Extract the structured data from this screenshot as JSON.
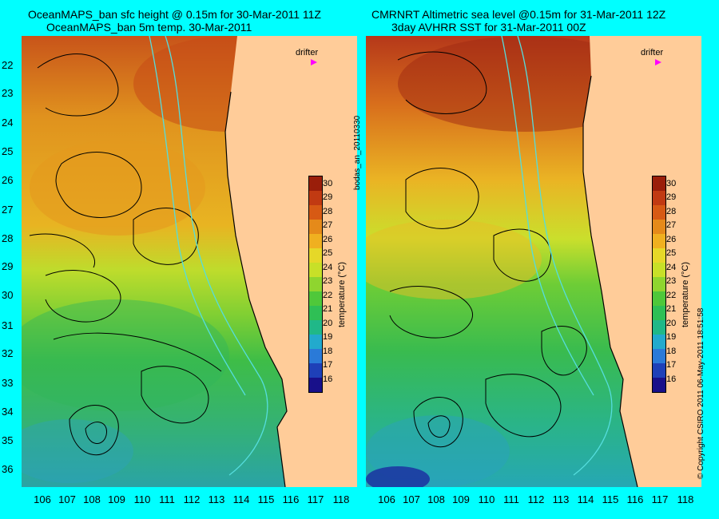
{
  "left": {
    "title1": "OceanMAPS_ban sfc height @ 0.15m for 30-Mar-2011 11Z",
    "title2": "OceanMAPS_ban 5m temp. 30-Mar-2011"
  },
  "right": {
    "title1": "CMRNRT Altimetric sea level  @0.15m  for 31-Mar-2011 12Z",
    "title2": "3day AVHRR SST for 31-Mar-2011 00Z"
  },
  "lat_labels": [
    "22",
    "23",
    "24",
    "25",
    "26",
    "27",
    "28",
    "29",
    "30",
    "31",
    "32",
    "33",
    "34",
    "35",
    "36"
  ],
  "lon_labels": [
    "106",
    "107",
    "108",
    "109",
    "110",
    "111",
    "112",
    "113",
    "114",
    "115",
    "116",
    "117",
    "118"
  ],
  "colorbar": {
    "ticks": [
      "30",
      "29",
      "28",
      "27",
      "26",
      "25",
      "24",
      "23",
      "22",
      "21",
      "20",
      "19",
      "18",
      "17",
      "16"
    ],
    "title": "temperature (°C)",
    "colors": [
      "#9a1e0a",
      "#c13a12",
      "#d75a14",
      "#e58a1a",
      "#f0b020",
      "#e6d828",
      "#c8e028",
      "#8fd52f",
      "#4fc83a",
      "#2fbf55",
      "#20b888",
      "#22aacd",
      "#2a7ad8",
      "#1e40b8",
      "#18108a"
    ]
  },
  "drifter_label": "drifter",
  "side_text": "bodas_an_20110330",
  "copyright": "© Copyright CSIRO 2011   06-May-2011 18:51:58",
  "colors": {
    "land": "#ffcc99",
    "frame": "#00ffff",
    "contour": "#000000",
    "isobath": "#55dddd",
    "drifter": "#ff00ff"
  }
}
